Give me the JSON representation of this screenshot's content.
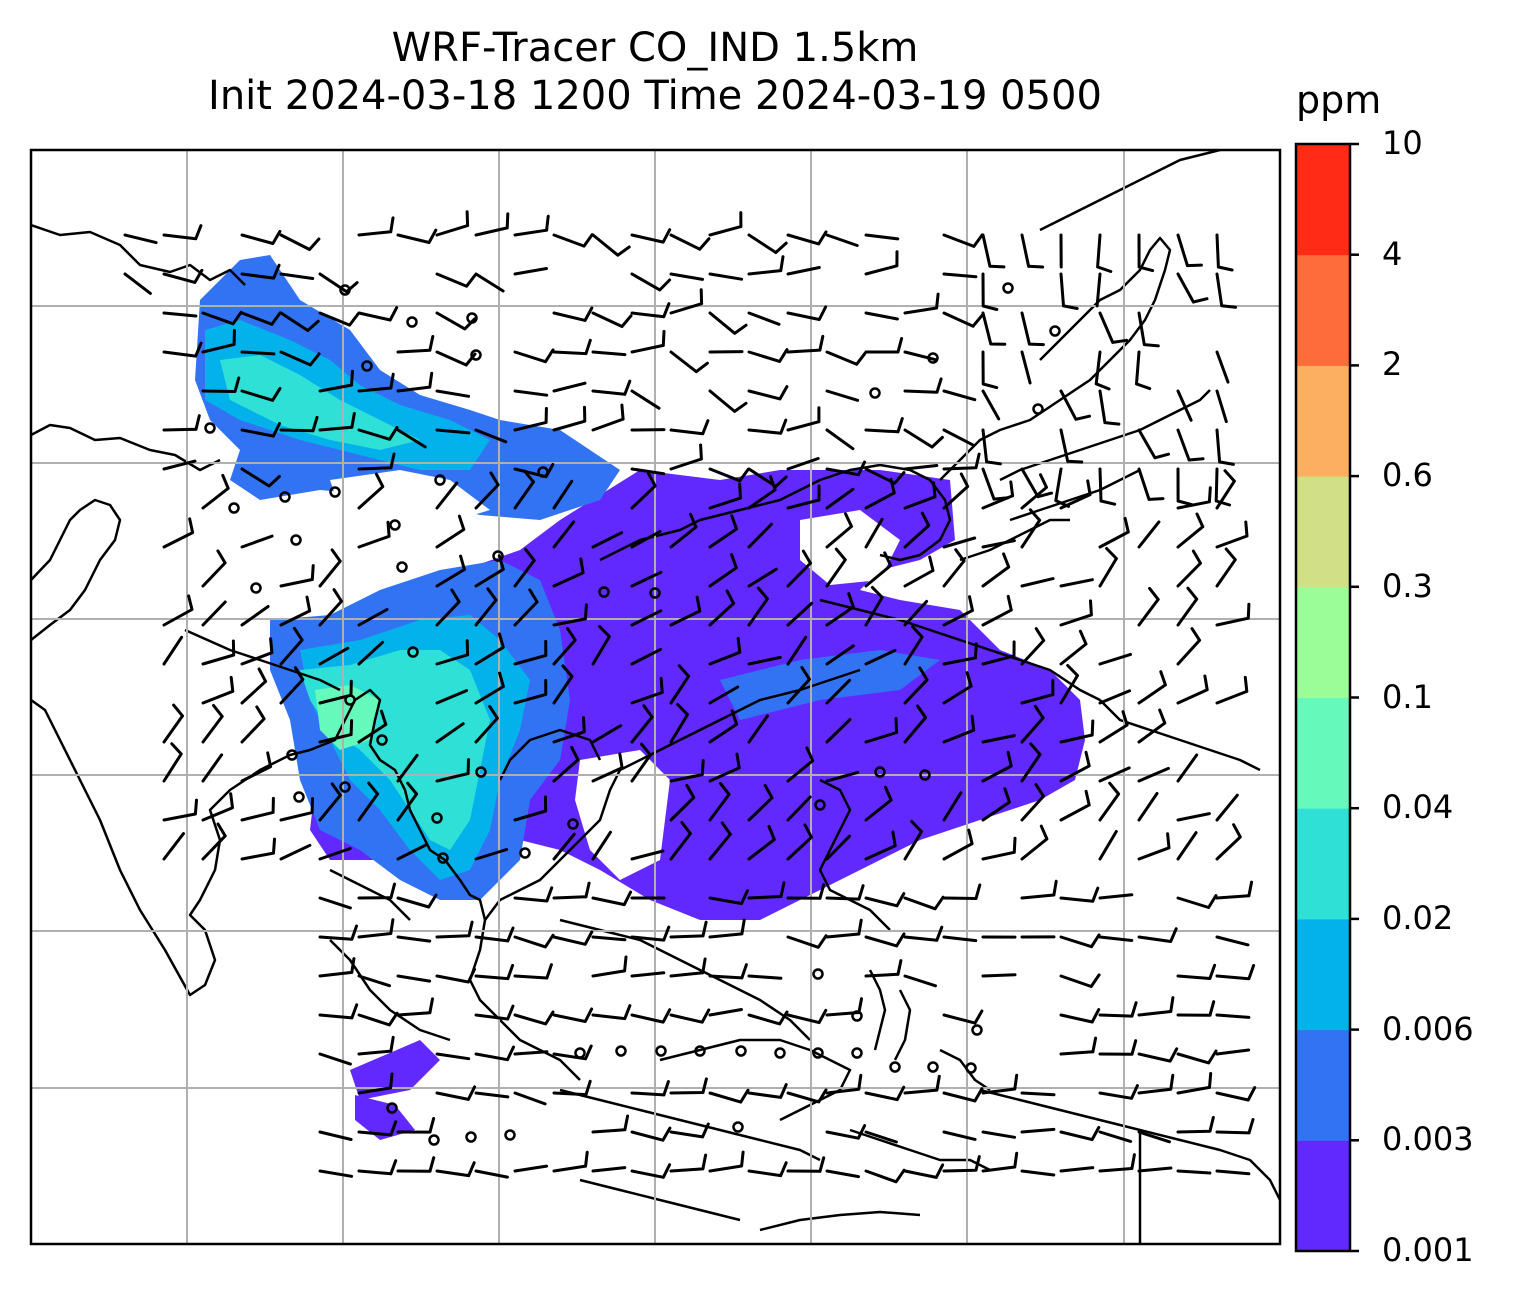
{
  "title": {
    "line1": "WRF-Tracer CO_IND 1.5km",
    "line2": "Init 2024-03-18 1200 Time 2024-03-19 0500"
  },
  "colorbar": {
    "unit": "ppm",
    "levels": [
      "0.001",
      "0.003",
      "0.006",
      "0.02",
      "0.04",
      "0.1",
      "0.3",
      "0.6",
      "2",
      "4",
      "10"
    ],
    "colors": [
      "#6229ff",
      "#3273f4",
      "#03b2eb",
      "#2ee0d5",
      "#66f9bc",
      "#9bfd97",
      "#d1e086",
      "#fdaf61",
      "#ff6c3b",
      "#ff2b16"
    ]
  },
  "map": {
    "gridlines": "on",
    "frame_color": "#000000",
    "grid_color": "#b0b0b0",
    "symbols": [
      "wind-barbs",
      "calm-circles",
      "coastlines",
      "country-borders"
    ]
  }
}
